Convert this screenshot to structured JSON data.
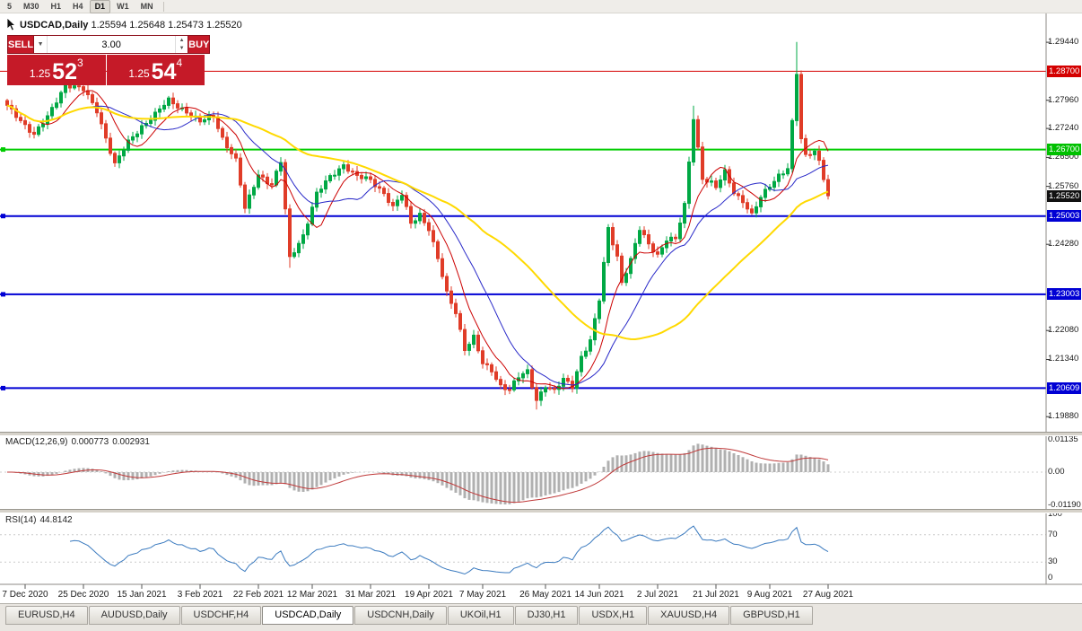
{
  "toolbar": {
    "buttons": [
      "5",
      "M30",
      "H1",
      "H4",
      "D1",
      "W1",
      "MN"
    ],
    "active": "D1"
  },
  "chart_header": {
    "symbol": "USDCAD,Daily",
    "open": "1.25594",
    "high": "1.25648",
    "low": "1.25473",
    "close": "1.25520"
  },
  "trade_panel": {
    "sell_label": "SELL",
    "buy_label": "BUY",
    "volume": "3.00",
    "sell": {
      "prefix": "1.25",
      "big": "52",
      "sup": "3"
    },
    "buy": {
      "prefix": "1.25",
      "big": "54",
      "sup": "4"
    },
    "button_color": "#c51a28"
  },
  "chart_data": {
    "type": "candlestick",
    "symbol": "USDCAD",
    "timeframe": "Daily",
    "quote": {
      "open": 1.25594,
      "high": 1.25648,
      "low": 1.25473,
      "close": 1.2552
    },
    "colors": {
      "up": "#00a844",
      "down": "#e03c28",
      "background": "#ffffff"
    },
    "y_axis": {
      "min": 1.1954,
      "max": 1.3013,
      "ticks": [
        {
          "value": 1.2944,
          "label": "1.29440"
        },
        {
          "value": 1.2796,
          "label": "1.27960"
        },
        {
          "value": 1.2724,
          "label": "1.27240"
        },
        {
          "value": 1.265,
          "label": "1.26500"
        },
        {
          "value": 1.2576,
          "label": "1.25760"
        },
        {
          "value": 1.2428,
          "label": "1.24280"
        },
        {
          "value": 1.2208,
          "label": "1.22080"
        },
        {
          "value": 1.2134,
          "label": "1.21340"
        },
        {
          "value": 1.1988,
          "label": "1.19880"
        }
      ],
      "badges": [
        {
          "value": 1.287,
          "label": "1.28700",
          "bg": "#d40000"
        },
        {
          "value": 1.267,
          "label": "1.26700",
          "bg": "#00c000"
        },
        {
          "value": 1.2552,
          "label": "1.25520",
          "bg": "#111111"
        },
        {
          "value": 1.25003,
          "label": "1.25003",
          "bg": "#0000d4"
        },
        {
          "value": 1.23003,
          "label": "1.23003",
          "bg": "#0000d4"
        },
        {
          "value": 1.20609,
          "label": "1.20609",
          "bg": "#0000d4"
        }
      ]
    },
    "levels": [
      {
        "value": 1.287,
        "color": "#d40000",
        "width": 1,
        "marker": false
      },
      {
        "value": 1.267,
        "color": "#00cc00",
        "width": 2,
        "marker": true
      },
      {
        "value": 1.25003,
        "color": "#0000d4",
        "width": 2,
        "marker": true
      },
      {
        "value": 1.23003,
        "color": "#0000d4",
        "width": 2,
        "marker": true
      },
      {
        "value": 1.20609,
        "color": "#0000d4",
        "width": 2,
        "marker": true
      }
    ],
    "x_axis": {
      "labels": [
        "7 Dec 2020",
        "25 Dec 2020",
        "15 Jan 2021",
        "3 Feb 2021",
        "22 Feb 2021",
        "12 Mar 2021",
        "31 Mar 2021",
        "19 Apr 2021",
        "7 May 2021",
        "26 May 2021",
        "14 Jun 2021",
        "2 Jul 2021",
        "21 Jul 2021",
        "9 Aug 2021",
        "27 Aug 2021"
      ],
      "label_indices": [
        4,
        17,
        30,
        43,
        56,
        68,
        81,
        94,
        106,
        120,
        132,
        145,
        158,
        170,
        183
      ]
    },
    "candles": {
      "count": 184,
      "noise_amp": 0.0008,
      "anchors": [
        [
          0,
          1.278
        ],
        [
          3,
          1.2746
        ],
        [
          6,
          1.2708
        ],
        [
          9,
          1.2752
        ],
        [
          13,
          1.2838
        ],
        [
          17,
          1.2822
        ],
        [
          20,
          1.277
        ],
        [
          24,
          1.2632
        ],
        [
          27,
          1.2688
        ],
        [
          30,
          1.273
        ],
        [
          33,
          1.276
        ],
        [
          36,
          1.2795
        ],
        [
          40,
          1.2768
        ],
        [
          43,
          1.274
        ],
        [
          46,
          1.2756
        ],
        [
          48,
          1.27
        ],
        [
          51,
          1.2642
        ],
        [
          53,
          1.2518
        ],
        [
          56,
          1.2608
        ],
        [
          59,
          1.258
        ],
        [
          61,
          1.2638
        ],
        [
          63,
          1.2392
        ],
        [
          66,
          1.2452
        ],
        [
          69,
          1.2556
        ],
        [
          72,
          1.26
        ],
        [
          75,
          1.2632
        ],
        [
          78,
          1.26
        ],
        [
          81,
          1.2592
        ],
        [
          84,
          1.256
        ],
        [
          86,
          1.2522
        ],
        [
          88,
          1.2554
        ],
        [
          90,
          1.2482
        ],
        [
          92,
          1.2506
        ],
        [
          94,
          1.2468
        ],
        [
          96,
          1.239
        ],
        [
          98,
          1.2302
        ],
        [
          100,
          1.2256
        ],
        [
          102,
          1.2162
        ],
        [
          104,
          1.219
        ],
        [
          106,
          1.2122
        ],
        [
          108,
          1.2106
        ],
        [
          110,
          1.2068
        ],
        [
          112,
          1.2058
        ],
        [
          114,
          1.2088
        ],
        [
          116,
          1.2102
        ],
        [
          118,
          1.2032
        ],
        [
          120,
          1.2068
        ],
        [
          122,
          1.2052
        ],
        [
          124,
          1.2082
        ],
        [
          126,
          1.2066
        ],
        [
          128,
          1.2142
        ],
        [
          130,
          1.2182
        ],
        [
          132,
          1.2285
        ],
        [
          134,
          1.2468
        ],
        [
          136,
          1.2398
        ],
        [
          137,
          1.2332
        ],
        [
          139,
          1.2388
        ],
        [
          141,
          1.2465
        ],
        [
          143,
          1.2428
        ],
        [
          145,
          1.2402
        ],
        [
          147,
          1.2442
        ],
        [
          149,
          1.244
        ],
        [
          151,
          1.2526
        ],
        [
          153,
          1.2752
        ],
        [
          155,
          1.2598
        ],
        [
          157,
          1.2584
        ],
        [
          158,
          1.2572
        ],
        [
          160,
          1.2612
        ],
        [
          162,
          1.2562
        ],
        [
          164,
          1.254
        ],
        [
          166,
          1.2502
        ],
        [
          168,
          1.2546
        ],
        [
          170,
          1.2578
        ],
        [
          172,
          1.2606
        ],
        [
          174,
          1.2622
        ],
        [
          175,
          1.2738
        ],
        [
          176,
          1.2862
        ],
        [
          177,
          1.2695
        ],
        [
          178,
          1.2652
        ],
        [
          179,
          1.2662
        ],
        [
          180,
          1.2668
        ],
        [
          181,
          1.2642
        ],
        [
          182,
          1.26
        ],
        [
          183,
          1.2552
        ]
      ],
      "exact": {
        "176": 1.2862,
        "183": 1.2552
      },
      "spikes": {
        "13": {
          "high": 1.285
        },
        "63": {
          "low": 1.2368
        },
        "118": {
          "low": 1.2006
        },
        "153": {
          "high": 1.2782
        },
        "176": {
          "high": 1.2945
        }
      }
    },
    "moving_averages": [
      {
        "period": 8,
        "color": "#cc0000",
        "width": 1
      },
      {
        "period": 17,
        "color": "#2828c8",
        "width": 1
      },
      {
        "period": 45,
        "color": "#ffd900",
        "width": 2
      }
    ],
    "macd": {
      "name": "MACD(12,26,9)",
      "fast": 12,
      "slow": 26,
      "signal_period": 9,
      "value_main": "0.000773",
      "value_signal": "0.002931",
      "ticks": [
        "0.01135",
        "0.00",
        "-0.01190"
      ],
      "histogram_color": "#b0b0b0",
      "signal_color": "#c03a3a"
    },
    "rsi": {
      "name": "RSI(14)",
      "period": 14,
      "value": "44.8142",
      "ticks": [
        100,
        70,
        30,
        0
      ],
      "levels": [
        70,
        30
      ],
      "color": "#3a7abf"
    }
  },
  "tabs": {
    "items": [
      "EURUSD,H4",
      "AUDUSD,Daily",
      "USDCHF,H4",
      "USDCAD,Daily",
      "USDCNH,Daily",
      "UKOil,H1",
      "DJ30,H1",
      "USDX,H1",
      "XAUUSD,H4",
      "GBPUSD,H1"
    ],
    "active_index": 3
  }
}
